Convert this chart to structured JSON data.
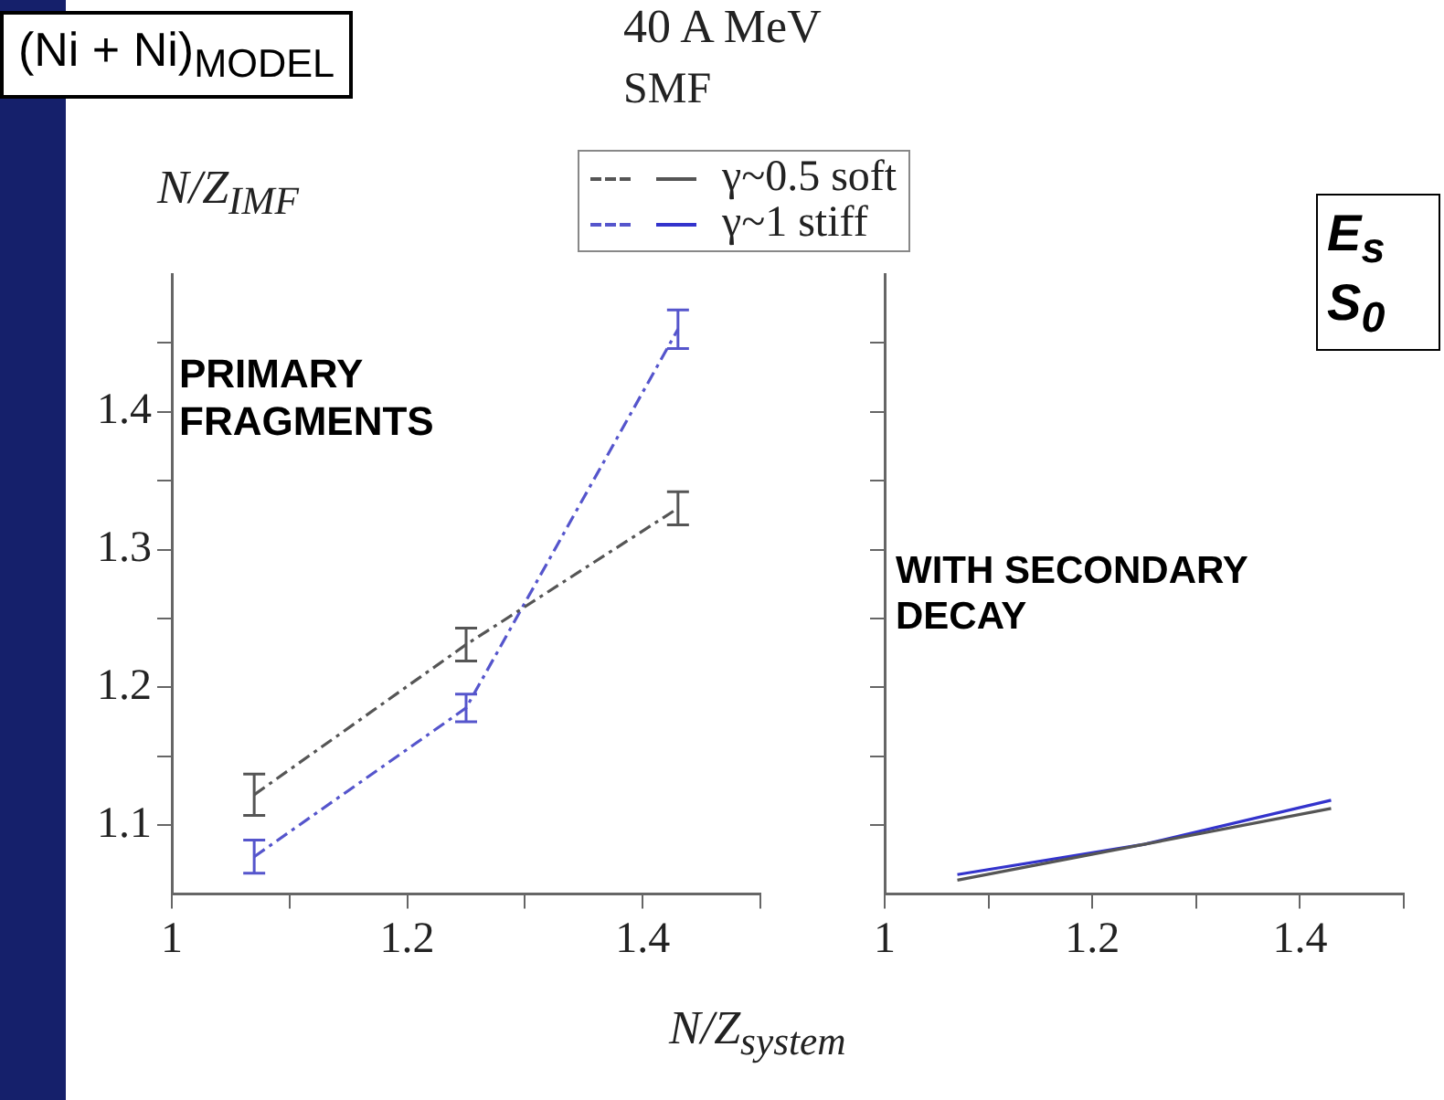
{
  "chart_data": [
    {
      "type": "line",
      "title": "40 A MeV",
      "subtitle": "SMF",
      "xlabel": "N/Z$_{system}$",
      "ylabel": "N/Z$_{IMF}$",
      "annotations": [
        "PRIMARY FRAGMENTS",
        "(Ni + Ni)$_{MODEL}$"
      ],
      "x": [
        1.07,
        1.25,
        1.43
      ],
      "series": [
        {
          "name": "γ~0.5 soft",
          "color": "#555555",
          "values": [
            1.122,
            1.231,
            1.33
          ],
          "errors": [
            0.015,
            0.012,
            0.012
          ]
        },
        {
          "name": "γ~1 stiff",
          "color": "#5555cc",
          "values": [
            1.077,
            1.185,
            1.46
          ],
          "errors": [
            0.012,
            0.01,
            0.014
          ]
        }
      ],
      "xlim": [
        1,
        1.5
      ],
      "xticks": [
        1,
        {
          "value": 1.1,
          "label": null
        },
        1.2,
        {
          "value": 1.3,
          "label": null
        },
        1.4,
        {
          "value": 1.5,
          "label": null
        }
      ],
      "ylim": [
        1.05,
        1.5
      ],
      "yticks": [
        1.1,
        {
          "value": 1.15,
          "label": null
        },
        1.2,
        {
          "value": 1.25,
          "label": null
        },
        1.3,
        {
          "value": 1.35,
          "label": null
        },
        1.4,
        {
          "value": 1.45,
          "label": null
        }
      ],
      "grid": false,
      "legend": "top right",
      "line_style": "dashed"
    },
    {
      "type": "line",
      "annotations": [
        "WITH SECONDARY DECAY",
        "E$_{s}$",
        "S$_{0}$"
      ],
      "x": [
        1.07,
        1.25,
        1.43
      ],
      "series": [
        {
          "color": "#555555",
          "values": [
            1.06,
            1.086,
            1.112
          ]
        },
        {
          "color": "#3333cc",
          "values": [
            1.064,
            1.086,
            1.118
          ]
        }
      ],
      "xlim": [
        1,
        1.5
      ],
      "xticks": [
        1,
        {
          "value": 1.1,
          "label": null
        },
        1.2,
        {
          "value": 1.3,
          "label": null
        },
        1.4,
        {
          "value": 1.5,
          "label": null
        }
      ],
      "ylim": [
        1.05,
        1.5
      ],
      "yticks": [
        1.1,
        {
          "value": 1.15,
          "label": null
        },
        1.2,
        {
          "value": 1.25,
          "label": null
        },
        1.3,
        {
          "value": 1.35,
          "label": null
        },
        1.4,
        {
          "value": 1.45,
          "label": null
        }
      ],
      "tick_labels": "x",
      "grid": false,
      "legend": "top left",
      "line_style": "solid"
    }
  ]
}
